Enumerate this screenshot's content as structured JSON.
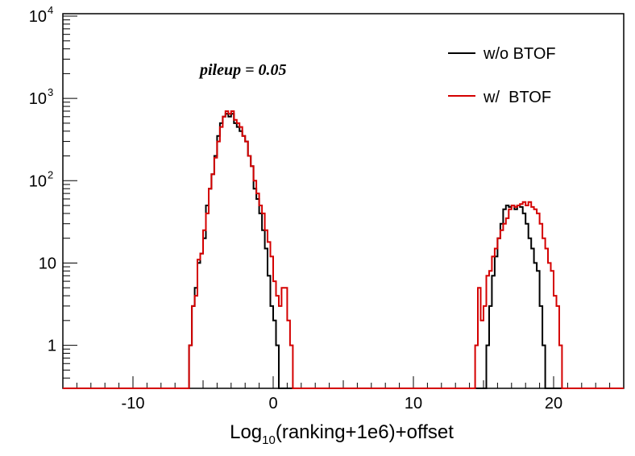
{
  "chart_data": {
    "type": "line",
    "title": "",
    "xlabel": {
      "base": "Log",
      "sub": "10",
      "rest": "(ranking+1e6)+offset"
    },
    "ylabel": "",
    "xlim": [
      -15,
      25
    ],
    "ylim": [
      0.3,
      10000
    ],
    "yscale": "log",
    "grid": false,
    "legend_position": "top-right",
    "annotation": "pileup = 0.05",
    "x_ticks": [
      {
        "value": -10,
        "label": "-10"
      },
      {
        "value": 0,
        "label": "0"
      },
      {
        "value": 10,
        "label": "10"
      },
      {
        "value": 20,
        "label": "20"
      }
    ],
    "y_ticks": [
      {
        "value": 1,
        "label": "1",
        "sup": ""
      },
      {
        "value": 10,
        "label": "10",
        "sup": ""
      },
      {
        "value": 100,
        "label": "10",
        "sup": "2"
      },
      {
        "value": 1000,
        "label": "10",
        "sup": "3"
      },
      {
        "value": 10000,
        "label": "10",
        "sup": "4"
      }
    ],
    "bin_width": 0.2,
    "series": [
      {
        "name": "w/o BTOF",
        "color": "#000000",
        "segments": [
          {
            "x_start": -6.0,
            "values": [
              1,
              3,
              5,
              10,
              13,
              20,
              50,
              80,
              120,
              200,
              350,
              500,
              600,
              650,
              600,
              650,
              500,
              450,
              400,
              350,
              300,
              200,
              150,
              80,
              60,
              40,
              25,
              15,
              7,
              3,
              2,
              1
            ]
          },
          {
            "x_start": 15.2,
            "values": [
              1,
              3,
              7,
              12,
              20,
              30,
              45,
              50,
              48,
              50,
              45,
              50,
              48,
              40,
              30,
              20,
              15,
              10,
              8,
              3,
              1
            ]
          }
        ]
      },
      {
        "name": "w/  BTOF",
        "color": "#d40000",
        "segments": [
          {
            "x_start": -6.0,
            "values": [
              1,
              3,
              4,
              11,
              13,
              25,
              40,
              80,
              120,
              190,
              300,
              450,
              600,
              700,
              650,
              700,
              550,
              500,
              450,
              350,
              300,
              200,
              150,
              100,
              70,
              50,
              40,
              25,
              18,
              12,
              6,
              4,
              3,
              5,
              5,
              2,
              1
            ]
          },
          {
            "x_start": 14.4,
            "values": [
              1,
              5,
              2,
              3,
              7,
              8,
              12,
              15,
              20,
              25,
              30,
              35,
              45,
              50,
              48,
              50,
              52,
              55,
              50,
              55,
              48,
              45,
              40,
              30,
              20,
              15,
              10,
              8,
              4,
              3,
              1
            ]
          }
        ]
      }
    ]
  }
}
